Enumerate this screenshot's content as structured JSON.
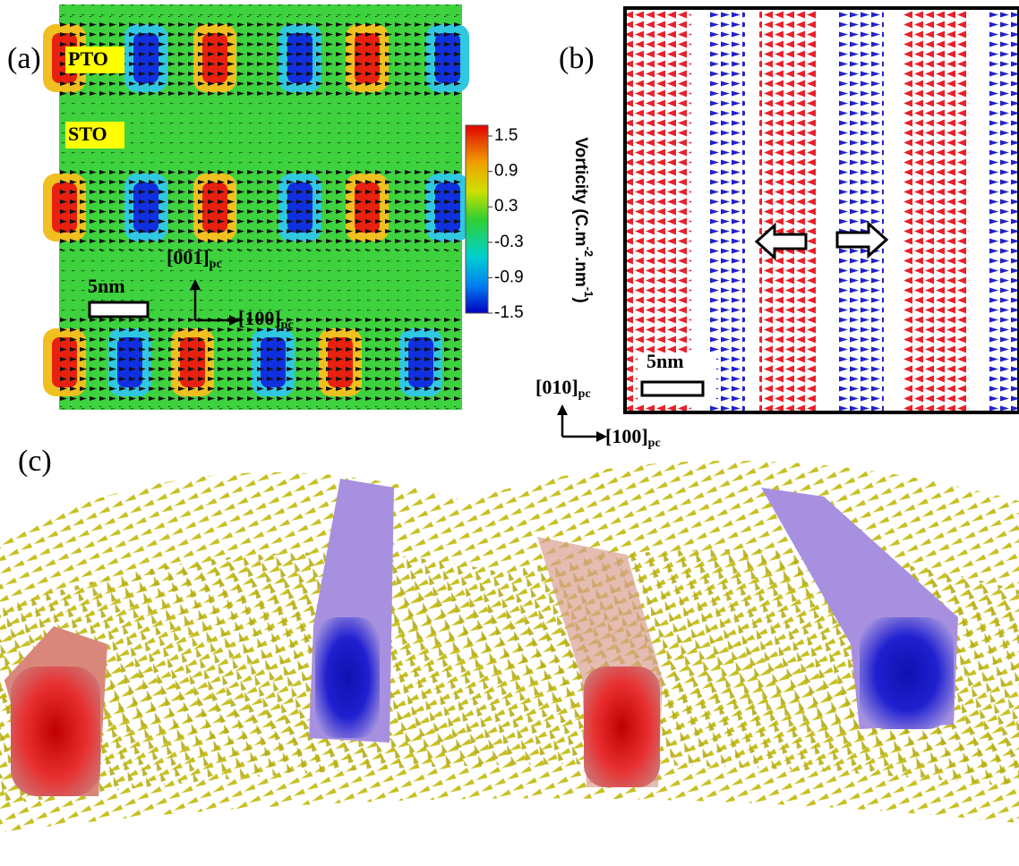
{
  "panel_a": {
    "label": "(a)",
    "layers": [
      "PTO",
      "STO"
    ],
    "scale_bar": "5nm",
    "axis_vertical": {
      "text": "[001]",
      "sub": "pc"
    },
    "axis_horizontal": {
      "text": "[100]",
      "sub": "pc"
    },
    "colorbar": {
      "title": [
        "Vorticity (C.m",
        "-2",
        ".nm",
        "-1",
        ")"
      ],
      "ticks": [
        1.5,
        0.9,
        0.3,
        -0.3,
        -0.9,
        -1.5
      ]
    }
  },
  "panel_b": {
    "label": "(b)",
    "scale_bar": "5nm",
    "axis_vertical": {
      "text": "[010]",
      "sub": "pc"
    },
    "axis_horizontal": {
      "text": "[100]",
      "sub": "pc"
    }
  },
  "panel_c": {
    "label": "(c)"
  }
}
